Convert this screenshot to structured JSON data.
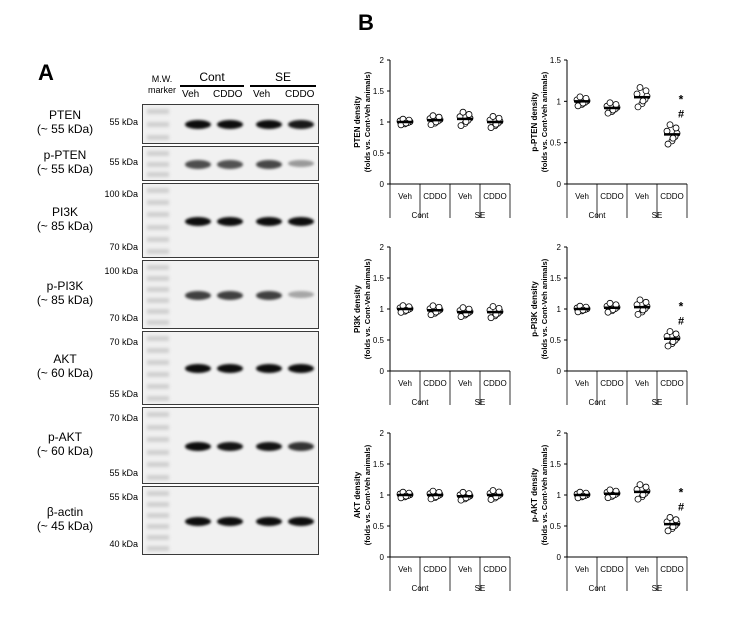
{
  "panelA": {
    "letter": "A",
    "mw_line1": "M.W.",
    "mw_line2": "marker",
    "groups": [
      "Cont",
      "SE"
    ],
    "lanes": [
      "Veh",
      "CDDO",
      "Veh",
      "CDDO"
    ],
    "blots": [
      {
        "name": "PTEN",
        "size": "(~ 55 kDa)",
        "markers": [
          "55 kDa"
        ],
        "intensities": [
          0.95,
          0.95,
          0.95,
          0.9
        ]
      },
      {
        "name": "p-PTEN",
        "size": "(~ 55 kDa)",
        "markers": [
          "55 kDa"
        ],
        "intensities": [
          0.7,
          0.68,
          0.72,
          0.4
        ]
      },
      {
        "name": "PI3K",
        "size": "(~ 85 kDa)",
        "markers": [
          "100 kDa",
          "70 kDa"
        ],
        "intensities": [
          0.95,
          0.95,
          0.95,
          0.95
        ]
      },
      {
        "name": "p-PI3K",
        "size": "(~ 85 kDa)",
        "markers": [
          "100 kDa",
          "70 kDa"
        ],
        "intensities": [
          0.75,
          0.75,
          0.75,
          0.35
        ]
      },
      {
        "name": "AKT",
        "size": "(~ 60 kDa)",
        "markers": [
          "70 kDa",
          "55 kDa"
        ],
        "intensities": [
          0.95,
          0.95,
          0.95,
          0.95
        ]
      },
      {
        "name": "p-AKT",
        "size": "(~ 60 kDa)",
        "markers": [
          "70 kDa",
          "55 kDa"
        ],
        "intensities": [
          0.95,
          0.92,
          0.92,
          0.8
        ]
      },
      {
        "name": "β-actin",
        "size": "(~ 45 kDa)",
        "markers": [
          "55 kDa",
          "40 kDa"
        ],
        "intensities": [
          0.95,
          0.95,
          0.95,
          0.95
        ]
      }
    ]
  },
  "panelB": {
    "letter": "B"
  },
  "chart_data": [
    {
      "type": "scatter",
      "ylabel": "PTEN density",
      "ylabel2": "(folds vs. Cont-Veh animals)",
      "ylim": [
        0,
        2
      ],
      "yticks": [
        "0",
        "0.5",
        "1",
        "1.5",
        "2"
      ],
      "categories": [
        "Veh",
        "CDDO",
        "Veh",
        "CDDO"
      ],
      "groups": [
        "Cont",
        "SE"
      ],
      "means": [
        1.0,
        1.03,
        1.05,
        1.0
      ],
      "spread": [
        0.05,
        0.08,
        0.12,
        0.1
      ],
      "annotations": [
        "",
        "",
        "",
        ""
      ]
    },
    {
      "type": "scatter",
      "ylabel": "p-PTEN density",
      "ylabel2": "(folds vs. Cont-Veh animals)",
      "ylim": [
        0,
        1.5
      ],
      "yticks": [
        "0",
        "0.5",
        "1",
        "1.5"
      ],
      "categories": [
        "Veh",
        "CDDO",
        "Veh",
        "CDDO"
      ],
      "groups": [
        "Cont",
        "SE"
      ],
      "means": [
        1.0,
        0.92,
        1.05,
        0.6
      ],
      "spread": [
        0.06,
        0.07,
        0.13,
        0.13
      ],
      "annotations": [
        "",
        "",
        "",
        "*#"
      ]
    },
    {
      "type": "scatter",
      "ylabel": "PI3K density",
      "ylabel2": "(folds vs. Cont-Veh animals)",
      "ylim": [
        0,
        2
      ],
      "yticks": [
        "0",
        "0.5",
        "1",
        "1.5",
        "2"
      ],
      "categories": [
        "Veh",
        "CDDO",
        "Veh",
        "CDDO"
      ],
      "groups": [
        "Cont",
        "SE"
      ],
      "means": [
        1.0,
        0.98,
        0.95,
        0.95
      ],
      "spread": [
        0.06,
        0.08,
        0.08,
        0.1
      ],
      "annotations": [
        "",
        "",
        "",
        ""
      ]
    },
    {
      "type": "scatter",
      "ylabel": "p-PI3K density",
      "ylabel2": "(folds vs. Cont-Veh animals)",
      "ylim": [
        0,
        2
      ],
      "yticks": [
        "0",
        "0.5",
        "1",
        "1.5",
        "2"
      ],
      "categories": [
        "Veh",
        "CDDO",
        "Veh",
        "CDDO"
      ],
      "groups": [
        "Cont",
        "SE"
      ],
      "means": [
        1.0,
        1.02,
        1.03,
        0.52
      ],
      "spread": [
        0.05,
        0.08,
        0.13,
        0.13
      ],
      "annotations": [
        "",
        "",
        "",
        "*#"
      ]
    },
    {
      "type": "scatter",
      "ylabel": "AKT density",
      "ylabel2": "(folds vs. Cont-Veh animals)",
      "ylim": [
        0,
        2
      ],
      "yticks": [
        "0",
        "0.5",
        "1",
        "1.5",
        "2"
      ],
      "categories": [
        "Veh",
        "CDDO",
        "Veh",
        "CDDO"
      ],
      "groups": [
        "Cont",
        "SE"
      ],
      "means": [
        1.0,
        1.0,
        0.98,
        1.0
      ],
      "spread": [
        0.05,
        0.07,
        0.07,
        0.08
      ],
      "annotations": [
        "",
        "",
        "",
        ""
      ]
    },
    {
      "type": "scatter",
      "ylabel": "p-AKT density",
      "ylabel2": "(folds vs. Cont-Veh animals)",
      "ylim": [
        0,
        2
      ],
      "yticks": [
        "0",
        "0.5",
        "1",
        "1.5",
        "2"
      ],
      "categories": [
        "Veh",
        "CDDO",
        "Veh",
        "CDDO"
      ],
      "groups": [
        "Cont",
        "SE"
      ],
      "means": [
        1.0,
        1.02,
        1.05,
        0.53
      ],
      "spread": [
        0.05,
        0.07,
        0.13,
        0.12
      ],
      "annotations": [
        "",
        "",
        "",
        "*#"
      ]
    }
  ]
}
